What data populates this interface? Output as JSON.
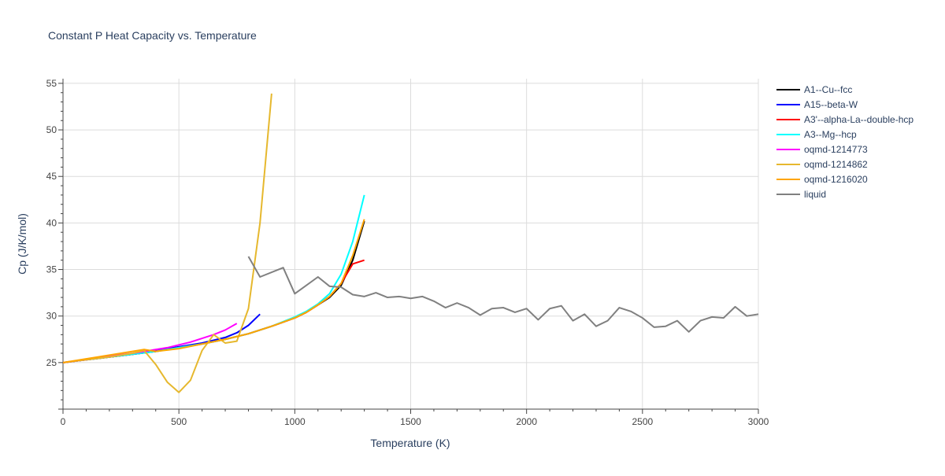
{
  "chart_data": {
    "type": "line",
    "title": "Constant P Heat Capacity vs. Temperature",
    "xlabel": "Temperature (K)",
    "ylabel": "Cp (J/K/mol)",
    "xlim": [
      0,
      3000
    ],
    "ylim": [
      20,
      55.5
    ],
    "x_ticks": [
      0,
      500,
      1000,
      1500,
      2000,
      2500,
      3000
    ],
    "y_ticks": [
      25,
      30,
      35,
      40,
      45,
      50,
      55
    ],
    "grid": true,
    "legend_position": "right",
    "series": [
      {
        "name": "A1--Cu--fcc",
        "color": "#000000",
        "x": [
          0,
          100,
          200,
          300,
          400,
          500,
          600,
          700,
          800,
          900,
          1000,
          1050,
          1100,
          1150,
          1200,
          1250,
          1300
        ],
        "y": [
          25.0,
          25.3,
          25.6,
          25.9,
          26.2,
          26.6,
          27.0,
          27.5,
          28.1,
          28.9,
          29.8,
          30.4,
          31.2,
          32.0,
          33.3,
          36.0,
          40.2
        ]
      },
      {
        "name": "A15--beta-W",
        "color": "#0000ff",
        "x": [
          0,
          100,
          200,
          300,
          400,
          500,
          600,
          650,
          700,
          750,
          800,
          850
        ],
        "y": [
          25.0,
          25.3,
          25.6,
          25.9,
          26.3,
          26.7,
          27.1,
          27.4,
          27.7,
          28.2,
          29.0,
          30.2
        ]
      },
      {
        "name": "A3'--alpha-La--double-hcp",
        "color": "#ff0000",
        "x": [
          0,
          100,
          200,
          300,
          400,
          500,
          600,
          700,
          800,
          900,
          1000,
          1050,
          1100,
          1150,
          1200,
          1250,
          1300
        ],
        "y": [
          25.0,
          25.3,
          25.6,
          25.9,
          26.2,
          26.6,
          27.0,
          27.5,
          28.1,
          28.9,
          29.8,
          30.4,
          31.2,
          32.1,
          33.5,
          35.6,
          36.0
        ]
      },
      {
        "name": "A3--Mg--hcp",
        "color": "#00ffff",
        "x": [
          0,
          100,
          200,
          300,
          400,
          500,
          600,
          700,
          800,
          900,
          1000,
          1050,
          1100,
          1150,
          1200,
          1250,
          1300
        ],
        "y": [
          25.0,
          25.3,
          25.6,
          25.9,
          26.2,
          26.6,
          27.0,
          27.5,
          28.1,
          28.9,
          29.9,
          30.5,
          31.3,
          32.4,
          34.5,
          38.0,
          43.0
        ]
      },
      {
        "name": "oqmd-1214773",
        "color": "#ff00ff",
        "x": [
          0,
          100,
          200,
          300,
          400,
          450,
          500,
          550,
          600,
          650,
          700,
          750
        ],
        "y": [
          25.0,
          25.3,
          25.7,
          26.0,
          26.4,
          26.6,
          26.9,
          27.2,
          27.6,
          28.0,
          28.5,
          29.2
        ]
      },
      {
        "name": "oqmd-1214862",
        "color": "#e6b82e",
        "x": [
          0,
          100,
          200,
          300,
          350,
          400,
          450,
          500,
          550,
          600,
          650,
          700,
          750,
          800,
          850,
          900
        ],
        "y": [
          25.0,
          25.3,
          25.6,
          26.0,
          26.3,
          24.8,
          22.9,
          21.8,
          23.1,
          26.3,
          28.0,
          27.1,
          27.3,
          30.8,
          40.0,
          53.9
        ]
      },
      {
        "name": "oqmd-1216020",
        "color": "#ffa500",
        "x": [
          0,
          100,
          200,
          300,
          350,
          400,
          500,
          600,
          700,
          800,
          900,
          1000,
          1050,
          1100,
          1150,
          1200,
          1250,
          1300
        ],
        "y": [
          25.0,
          25.4,
          25.8,
          26.2,
          26.4,
          26.2,
          26.5,
          27.0,
          27.5,
          28.1,
          28.9,
          29.8,
          30.4,
          31.2,
          32.1,
          33.5,
          36.5,
          40.4
        ]
      },
      {
        "name": "liquid",
        "color": "#808080",
        "x": [
          800,
          850,
          950,
          1000,
          1100,
          1150,
          1200,
          1250,
          1300,
          1350,
          1400,
          1450,
          1500,
          1550,
          1600,
          1650,
          1700,
          1750,
          1800,
          1850,
          1900,
          1950,
          2000,
          2050,
          2100,
          2150,
          2200,
          2250,
          2300,
          2350,
          2400,
          2450,
          2500,
          2550,
          2600,
          2650,
          2700,
          2750,
          2800,
          2850,
          2900,
          2950,
          3000
        ],
        "y": [
          36.4,
          34.2,
          35.2,
          32.4,
          34.2,
          33.2,
          33.1,
          32.3,
          32.1,
          32.5,
          32.0,
          32.1,
          31.9,
          32.1,
          31.6,
          30.9,
          31.4,
          30.9,
          30.1,
          30.8,
          30.9,
          30.4,
          30.8,
          29.6,
          30.8,
          31.1,
          29.5,
          30.2,
          28.9,
          29.5,
          30.9,
          30.5,
          29.8,
          28.8,
          28.9,
          29.5,
          28.3,
          29.5,
          29.9,
          29.8,
          31.0,
          30.0,
          30.2
        ]
      }
    ]
  }
}
